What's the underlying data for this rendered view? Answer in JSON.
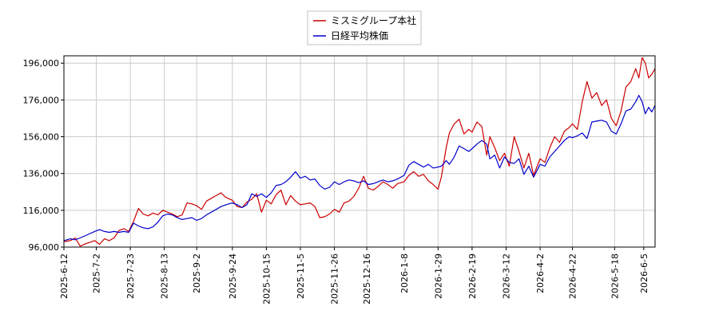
{
  "chart_data": {
    "type": "line",
    "title": "",
    "xlabel": "",
    "ylabel": "",
    "ylim": [
      96000,
      200000
    ],
    "xlim": [
      "2025-06-12",
      "2026-06-12"
    ],
    "y_ticks": [
      "96,000",
      "116,000",
      "136,000",
      "156,000",
      "176,000",
      "196,000"
    ],
    "y_tick_values": [
      96000,
      116000,
      136000,
      156000,
      176000,
      196000
    ],
    "x_ticks": [
      "2025-6-12",
      "2025-7-2",
      "2025-7-23",
      "2025-8-13",
      "2025-9-2",
      "2025-9-24",
      "2025-10-15",
      "2025-11-5",
      "2025-11-26",
      "2025-12-16",
      "2026-1-8",
      "2026-1-29",
      "2026-2-19",
      "2026-3-12",
      "2026-4-2",
      "2026-4-22",
      "2026-5-18",
      "2026-6-5"
    ],
    "x_tick_dates": [
      "2025-06-12",
      "2025-07-02",
      "2025-07-23",
      "2025-08-13",
      "2025-09-02",
      "2025-09-24",
      "2025-10-15",
      "2025-11-05",
      "2025-11-26",
      "2025-12-16",
      "2026-01-08",
      "2026-01-29",
      "2026-02-19",
      "2026-03-12",
      "2026-04-02",
      "2026-04-22",
      "2026-05-18",
      "2026-06-05"
    ],
    "grid": true,
    "legend_position": "top-center",
    "series": [
      {
        "name": "ミスミグループ本社",
        "color": "#cc0000",
        "points": [
          [
            "2025-06-12",
            99000
          ],
          [
            "2025-06-16",
            99500
          ],
          [
            "2025-06-19",
            101000
          ],
          [
            "2025-06-22",
            96500
          ],
          [
            "2025-06-26",
            98000
          ],
          [
            "2025-07-01",
            99500
          ],
          [
            "2025-07-04",
            97500
          ],
          [
            "2025-07-07",
            100500
          ],
          [
            "2025-07-10",
            99500
          ],
          [
            "2025-07-13",
            101000
          ],
          [
            "2025-07-16",
            105000
          ],
          [
            "2025-07-19",
            106000
          ],
          [
            "2025-07-22",
            104500
          ],
          [
            "2025-07-25",
            110000
          ],
          [
            "2025-07-28",
            117000
          ],
          [
            "2025-07-31",
            114000
          ],
          [
            "2025-08-03",
            113000
          ],
          [
            "2025-08-06",
            114500
          ],
          [
            "2025-08-09",
            113500
          ],
          [
            "2025-08-12",
            116000
          ],
          [
            "2025-08-15",
            115000
          ],
          [
            "2025-08-18",
            114000
          ],
          [
            "2025-08-21",
            112500
          ],
          [
            "2025-08-24",
            113500
          ],
          [
            "2025-08-27",
            120000
          ],
          [
            "2025-08-30",
            119500
          ],
          [
            "2025-09-02",
            118500
          ],
          [
            "2025-09-05",
            116500
          ],
          [
            "2025-09-08",
            121000
          ],
          [
            "2025-09-11",
            122500
          ],
          [
            "2025-09-14",
            124000
          ],
          [
            "2025-09-17",
            125500
          ],
          [
            "2025-09-20",
            123000
          ],
          [
            "2025-09-24",
            121500
          ],
          [
            "2025-09-27",
            118000
          ],
          [
            "2025-09-30",
            117500
          ],
          [
            "2025-10-03",
            120500
          ],
          [
            "2025-10-06",
            122000
          ],
          [
            "2025-10-09",
            125000
          ],
          [
            "2025-10-12",
            115000
          ],
          [
            "2025-10-15",
            121500
          ],
          [
            "2025-10-18",
            119500
          ],
          [
            "2025-10-21",
            124500
          ],
          [
            "2025-10-24",
            127000
          ],
          [
            "2025-10-27",
            119000
          ],
          [
            "2025-10-30",
            124000
          ],
          [
            "2025-11-02",
            121000
          ],
          [
            "2025-11-05",
            119000
          ],
          [
            "2025-11-08",
            119500
          ],
          [
            "2025-11-11",
            120000
          ],
          [
            "2025-11-14",
            118000
          ],
          [
            "2025-11-17",
            112000
          ],
          [
            "2025-11-20",
            112500
          ],
          [
            "2025-11-23",
            114000
          ],
          [
            "2025-11-26",
            116500
          ],
          [
            "2025-11-29",
            115000
          ],
          [
            "2025-12-02",
            120000
          ],
          [
            "2025-12-05",
            121000
          ],
          [
            "2025-12-08",
            123500
          ],
          [
            "2025-12-11",
            128000
          ],
          [
            "2025-12-14",
            134500
          ],
          [
            "2025-12-17",
            128000
          ],
          [
            "2025-12-20",
            127000
          ],
          [
            "2025-12-23",
            129000
          ],
          [
            "2025-12-26",
            131500
          ],
          [
            "2025-12-29",
            130000
          ],
          [
            "2026-01-01",
            128000
          ],
          [
            "2026-01-04",
            130500
          ],
          [
            "2026-01-08",
            131500
          ],
          [
            "2026-01-11",
            135000
          ],
          [
            "2026-01-14",
            137000
          ],
          [
            "2026-01-17",
            134500
          ],
          [
            "2026-01-20",
            135500
          ],
          [
            "2026-01-23",
            132000
          ],
          [
            "2026-01-26",
            130000
          ],
          [
            "2026-01-29",
            127500
          ],
          [
            "2026-01-31",
            134000
          ],
          [
            "2026-02-03",
            150000
          ],
          [
            "2026-02-05",
            158000
          ],
          [
            "2026-02-08",
            163000
          ],
          [
            "2026-02-11",
            165500
          ],
          [
            "2026-02-14",
            157500
          ],
          [
            "2026-02-17",
            160000
          ],
          [
            "2026-02-19",
            158500
          ],
          [
            "2026-02-22",
            164000
          ],
          [
            "2026-02-25",
            161500
          ],
          [
            "2026-02-28",
            146000
          ],
          [
            "2026-03-02",
            156000
          ],
          [
            "2026-03-05",
            150000
          ],
          [
            "2026-03-08",
            143000
          ],
          [
            "2026-03-11",
            147000
          ],
          [
            "2026-03-14",
            140000
          ],
          [
            "2026-03-17",
            156000
          ],
          [
            "2026-03-20",
            148000
          ],
          [
            "2026-03-23",
            139000
          ],
          [
            "2026-03-26",
            147000
          ],
          [
            "2026-03-29",
            135000
          ],
          [
            "2026-04-02",
            144000
          ],
          [
            "2026-04-05",
            142000
          ],
          [
            "2026-04-08",
            150000
          ],
          [
            "2026-04-11",
            156000
          ],
          [
            "2026-04-14",
            153000
          ],
          [
            "2026-04-17",
            159000
          ],
          [
            "2026-04-20",
            161000
          ],
          [
            "2026-04-22",
            163000
          ],
          [
            "2026-04-25",
            160000
          ],
          [
            "2026-04-28",
            175000
          ],
          [
            "2026-05-01",
            186000
          ],
          [
            "2026-05-04",
            177000
          ],
          [
            "2026-05-07",
            180000
          ],
          [
            "2026-05-10",
            173000
          ],
          [
            "2026-05-13",
            176000
          ],
          [
            "2026-05-16",
            166000
          ],
          [
            "2026-05-19",
            162000
          ],
          [
            "2026-05-22",
            170000
          ],
          [
            "2026-05-25",
            183000
          ],
          [
            "2026-05-28",
            186000
          ],
          [
            "2026-05-31",
            193000
          ],
          [
            "2026-06-02",
            188000
          ],
          [
            "2026-06-04",
            199000
          ],
          [
            "2026-06-06",
            196000
          ],
          [
            "2026-06-08",
            188000
          ],
          [
            "2026-06-10",
            190000
          ],
          [
            "2026-06-12",
            193000
          ]
        ]
      },
      {
        "name": "日経平均株価",
        "color": "#0000cc",
        "points": [
          [
            "2025-06-12",
            99500
          ],
          [
            "2025-06-16",
            100500
          ],
          [
            "2025-06-19",
            100000
          ],
          [
            "2025-06-22",
            101000
          ],
          [
            "2025-06-26",
            102500
          ],
          [
            "2025-07-01",
            104500
          ],
          [
            "2025-07-04",
            105500
          ],
          [
            "2025-07-07",
            104500
          ],
          [
            "2025-07-10",
            104000
          ],
          [
            "2025-07-13",
            104500
          ],
          [
            "2025-07-16",
            104000
          ],
          [
            "2025-07-19",
            104500
          ],
          [
            "2025-07-22",
            104000
          ],
          [
            "2025-07-25",
            109000
          ],
          [
            "2025-07-28",
            107500
          ],
          [
            "2025-07-31",
            106500
          ],
          [
            "2025-08-03",
            106000
          ],
          [
            "2025-08-06",
            107000
          ],
          [
            "2025-08-09",
            109500
          ],
          [
            "2025-08-12",
            113000
          ],
          [
            "2025-08-15",
            114000
          ],
          [
            "2025-08-18",
            113500
          ],
          [
            "2025-08-21",
            112000
          ],
          [
            "2025-08-24",
            111000
          ],
          [
            "2025-08-27",
            111500
          ],
          [
            "2025-08-30",
            112000
          ],
          [
            "2025-09-02",
            110500
          ],
          [
            "2025-09-05",
            111500
          ],
          [
            "2025-09-08",
            113500
          ],
          [
            "2025-09-11",
            115000
          ],
          [
            "2025-09-14",
            116500
          ],
          [
            "2025-09-17",
            118000
          ],
          [
            "2025-09-20",
            119000
          ],
          [
            "2025-09-24",
            120000
          ],
          [
            "2025-09-27",
            119000
          ],
          [
            "2025-09-30",
            117500
          ],
          [
            "2025-10-03",
            119000
          ],
          [
            "2025-10-06",
            125000
          ],
          [
            "2025-10-09",
            123500
          ],
          [
            "2025-10-12",
            125000
          ],
          [
            "2025-10-15",
            123000
          ],
          [
            "2025-10-18",
            125500
          ],
          [
            "2025-10-21",
            129500
          ],
          [
            "2025-10-24",
            130000
          ],
          [
            "2025-10-27",
            131500
          ],
          [
            "2025-10-30",
            134000
          ],
          [
            "2025-11-02",
            137000
          ],
          [
            "2025-11-05",
            133500
          ],
          [
            "2025-11-08",
            134500
          ],
          [
            "2025-11-11",
            132500
          ],
          [
            "2025-11-14",
            133000
          ],
          [
            "2025-11-17",
            129500
          ],
          [
            "2025-11-20",
            127500
          ],
          [
            "2025-11-23",
            128500
          ],
          [
            "2025-11-26",
            131500
          ],
          [
            "2025-11-29",
            130000
          ],
          [
            "2025-12-02",
            131500
          ],
          [
            "2025-12-05",
            132500
          ],
          [
            "2025-12-08",
            132000
          ],
          [
            "2025-12-11",
            131000
          ],
          [
            "2025-12-14",
            132000
          ],
          [
            "2025-12-17",
            130000
          ],
          [
            "2025-12-20",
            130500
          ],
          [
            "2025-12-23",
            131500
          ],
          [
            "2025-12-26",
            132500
          ],
          [
            "2025-12-29",
            131500
          ],
          [
            "2026-01-01",
            132000
          ],
          [
            "2026-01-04",
            133000
          ],
          [
            "2026-01-08",
            135000
          ],
          [
            "2026-01-11",
            140500
          ],
          [
            "2026-01-14",
            142500
          ],
          [
            "2026-01-17",
            141000
          ],
          [
            "2026-01-20",
            139500
          ],
          [
            "2026-01-23",
            141000
          ],
          [
            "2026-01-26",
            139000
          ],
          [
            "2026-01-29",
            139500
          ],
          [
            "2026-01-31",
            140000
          ],
          [
            "2026-02-03",
            143000
          ],
          [
            "2026-02-05",
            141000
          ],
          [
            "2026-02-08",
            145000
          ],
          [
            "2026-02-11",
            151000
          ],
          [
            "2026-02-14",
            149500
          ],
          [
            "2026-02-17",
            148000
          ],
          [
            "2026-02-19",
            149500
          ],
          [
            "2026-02-22",
            152000
          ],
          [
            "2026-02-25",
            154000
          ],
          [
            "2026-02-28",
            152000
          ],
          [
            "2026-03-02",
            144000
          ],
          [
            "2026-03-05",
            146000
          ],
          [
            "2026-03-08",
            139000
          ],
          [
            "2026-03-11",
            145000
          ],
          [
            "2026-03-14",
            142000
          ],
          [
            "2026-03-17",
            141500
          ],
          [
            "2026-03-20",
            144000
          ],
          [
            "2026-03-23",
            135500
          ],
          [
            "2026-03-26",
            140000
          ],
          [
            "2026-03-29",
            134000
          ],
          [
            "2026-04-02",
            141000
          ],
          [
            "2026-04-05",
            140000
          ],
          [
            "2026-04-08",
            145000
          ],
          [
            "2026-04-11",
            148000
          ],
          [
            "2026-04-14",
            151000
          ],
          [
            "2026-04-17",
            154000
          ],
          [
            "2026-04-20",
            156000
          ],
          [
            "2026-04-22",
            155500
          ],
          [
            "2026-04-25",
            156500
          ],
          [
            "2026-04-28",
            158000
          ],
          [
            "2026-05-01",
            155000
          ],
          [
            "2026-05-04",
            164000
          ],
          [
            "2026-05-07",
            164500
          ],
          [
            "2026-05-10",
            165000
          ],
          [
            "2026-05-13",
            164000
          ],
          [
            "2026-05-16",
            159000
          ],
          [
            "2026-05-19",
            157500
          ],
          [
            "2026-05-22",
            163000
          ],
          [
            "2026-05-25",
            170000
          ],
          [
            "2026-05-28",
            171000
          ],
          [
            "2026-05-31",
            175000
          ],
          [
            "2026-06-02",
            178500
          ],
          [
            "2026-06-04",
            175000
          ],
          [
            "2026-06-06",
            168500
          ],
          [
            "2026-06-08",
            172000
          ],
          [
            "2026-06-10",
            169500
          ],
          [
            "2026-06-12",
            173000
          ]
        ]
      }
    ]
  }
}
